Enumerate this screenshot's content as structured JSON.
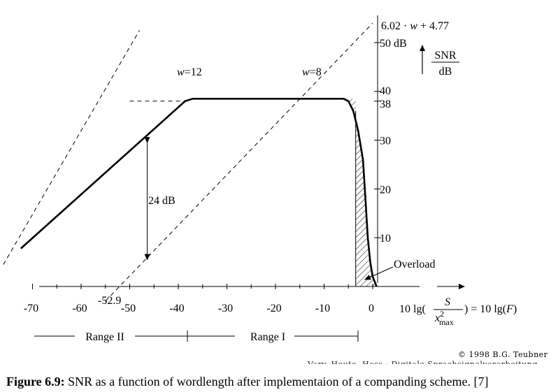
{
  "chart_data": {
    "type": "line",
    "title": "",
    "xlabel_prefix": "10 lg(",
    "xlabel_frac_num": "S",
    "xlabel_frac_den_main": "x",
    "xlabel_frac_den_sup": "2",
    "xlabel_frac_den_sub": "max",
    "xlabel_suffix": ") = 10 lg(F)",
    "ylabel_num": "SNR",
    "ylabel_den": "dB",
    "x_ticks": [
      -70,
      -60,
      -50,
      -40,
      -30,
      -20,
      -10,
      0
    ],
    "x_tick_labels": [
      "-70",
      "-60",
      "-50",
      "-40",
      "-30",
      "-20",
      "-10",
      "0"
    ],
    "x_special_label": "-52.9",
    "y_ticks": [
      10,
      20,
      30,
      38,
      40,
      50
    ],
    "y_tick_labels": [
      "10",
      "20",
      "30",
      "38",
      "40",
      "50 dB"
    ],
    "y_top_formula": "6.02 · w + 4.77",
    "xlim": [
      -72,
      1
    ],
    "ylim": [
      0,
      58
    ],
    "snr_curve": {
      "x": [
        -72.4,
        -38.6,
        -37.0,
        -6.0,
        -5.0,
        -4.0,
        -3.0,
        -2.0,
        -1.5,
        -1.0,
        -0.5,
        0.0,
        0.8
      ],
      "y": [
        7.8,
        38,
        38.5,
        38.5,
        38,
        36,
        32,
        26,
        18,
        10,
        5,
        2,
        0
      ]
    },
    "dashed_lines": [
      {
        "label": "w=12",
        "x": [
          -76,
          -48
        ],
        "y": [
          4.5,
          52.5
        ]
      },
      {
        "label": "w=8",
        "x": [
          -55,
          0
        ],
        "y": [
          -3,
          54
        ]
      },
      {
        "label": "",
        "x": [
          -50,
          -38.6
        ],
        "y": [
          38,
          38
        ]
      }
    ],
    "line_labels": [
      "w=12",
      "w=8"
    ],
    "annotations": {
      "gap_label": "24 dB",
      "overload_label": "Overload"
    },
    "ranges": [
      {
        "label": "Range II",
        "from": -76,
        "to": -40
      },
      {
        "label": "Range I",
        "from": -40,
        "to": -3
      }
    ],
    "grid": false
  },
  "credit": "© 1998 B.G. Teubner",
  "credit_cut": "Vary, Heute, Hess · Digitale Sprachsignalverarbeitung",
  "caption": {
    "label": "Figure 6.9:",
    "text": " SNR as a function of wordlength after implementaion of a companding scheme. [7]"
  }
}
